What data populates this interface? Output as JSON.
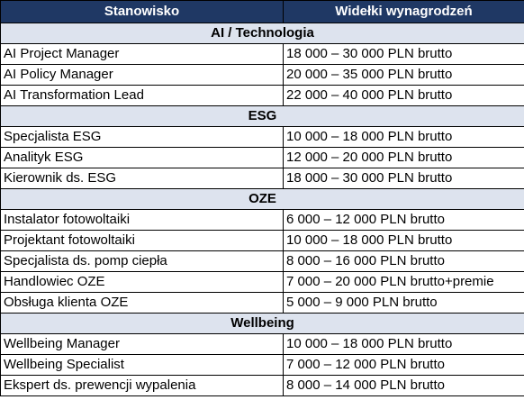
{
  "headers": {
    "position": "Stanowisko",
    "salary": "Widełki wynagrodzeń"
  },
  "colors": {
    "header_bg": "#1f3864",
    "header_text": "#ffffff",
    "category_bg": "#dde3ee",
    "border": "#000000"
  },
  "categories": [
    {
      "title": "AI / Technologia",
      "rows": [
        {
          "position": "AI Project Manager",
          "salary": "18 000 – 30 000 PLN brutto"
        },
        {
          "position": "AI Policy Manager",
          "salary": "20 000 – 35 000 PLN brutto"
        },
        {
          "position": "AI Transformation Lead",
          "salary": "22 000 – 40 000 PLN brutto"
        }
      ]
    },
    {
      "title": "ESG",
      "rows": [
        {
          "position": "Specjalista ESG",
          "salary": "10 000 – 18 000 PLN brutto"
        },
        {
          "position": "Analityk ESG",
          "salary": "12 000 – 20 000 PLN brutto"
        },
        {
          "position": "Kierownik ds. ESG",
          "salary": "18 000 – 30 000 PLN brutto"
        }
      ]
    },
    {
      "title": "OZE",
      "rows": [
        {
          "position": "Instalator fotowoltaiki",
          "salary": "6 000 – 12 000 PLN brutto"
        },
        {
          "position": "Projektant fotowoltaiki",
          "salary": "10 000 – 18 000 PLN brutto"
        },
        {
          "position": "Specjalista ds. pomp ciepła",
          "salary": "8 000 – 16 000 PLN brutto"
        },
        {
          "position": "Handlowiec OZE",
          "salary": "7 000 – 20 000 PLN brutto+premie"
        },
        {
          "position": "Obsługa klienta OZE",
          "salary": "5 000 – 9 000 PLN brutto"
        }
      ]
    },
    {
      "title": "Wellbeing",
      "rows": [
        {
          "position": "Wellbeing Manager",
          "salary": "10 000 – 18 000 PLN brutto"
        },
        {
          "position": "Wellbeing Specialist",
          "salary": "7 000 – 12 000 PLN brutto"
        },
        {
          "position": "Ekspert ds. prewencji wypalenia",
          "salary": "8 000 – 14 000 PLN brutto"
        }
      ]
    }
  ]
}
